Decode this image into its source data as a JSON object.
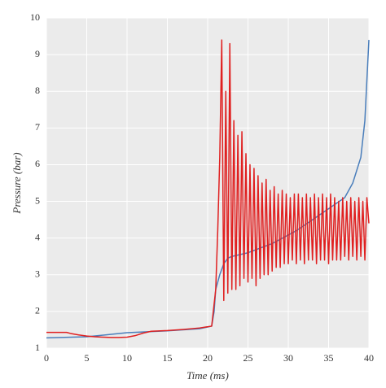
{
  "chart_data": {
    "type": "line",
    "x_label": "Time (ms)",
    "y_label": "Pressure (bar)",
    "xlim": [
      0,
      40
    ],
    "xticks": [
      0,
      5,
      10,
      15,
      20,
      25,
      30,
      35,
      40
    ],
    "ylim": [
      1,
      10
    ],
    "yticks": [
      1,
      2,
      3,
      4,
      5,
      6,
      7,
      8,
      9,
      10
    ],
    "grid": true,
    "series": [
      {
        "color": "#4a7ebb",
        "x": [
          0,
          5,
          10,
          15,
          19,
          20.5,
          20.8,
          21,
          21.5,
          22,
          22.5,
          23,
          25,
          28,
          31,
          33,
          35,
          37,
          38,
          39,
          39.5,
          40
        ],
        "values": [
          1.28,
          1.31,
          1.42,
          1.47,
          1.53,
          1.6,
          2.0,
          2.6,
          3.0,
          3.3,
          3.45,
          3.5,
          3.6,
          3.85,
          4.2,
          4.5,
          4.8,
          5.1,
          5.5,
          6.2,
          7.2,
          9.4
        ]
      },
      {
        "color": "#e02020",
        "x": [
          0,
          2.5,
          3,
          4,
          5,
          6,
          7,
          8,
          9,
          10,
          11,
          12,
          13,
          15,
          17,
          19,
          20.5,
          21,
          21.25,
          21.5,
          21.75,
          22,
          22.25,
          22.5,
          22.75,
          23,
          23.25,
          23.5,
          23.75,
          24,
          24.25,
          24.5,
          24.75,
          25,
          25.25,
          25.5,
          25.75,
          26,
          26.25,
          26.5,
          26.75,
          27,
          27.25,
          27.5,
          27.75,
          28,
          28.25,
          28.5,
          28.75,
          29,
          29.25,
          29.5,
          29.75,
          30,
          30.25,
          30.5,
          30.75,
          31,
          31.25,
          31.5,
          31.75,
          32,
          32.25,
          32.5,
          32.75,
          33,
          33.25,
          33.5,
          33.75,
          34,
          34.25,
          34.5,
          34.75,
          35,
          35.25,
          35.5,
          35.75,
          36,
          36.25,
          36.5,
          36.75,
          37,
          37.25,
          37.5,
          37.75,
          38,
          38.25,
          38.5,
          38.75,
          39,
          39.25,
          39.5,
          39.75,
          40
        ],
        "values": [
          1.43,
          1.43,
          1.4,
          1.36,
          1.33,
          1.31,
          1.3,
          1.29,
          1.29,
          1.3,
          1.34,
          1.41,
          1.46,
          1.48,
          1.51,
          1.55,
          1.6,
          2.6,
          4.2,
          6.2,
          9.4,
          2.3,
          8.0,
          2.5,
          9.3,
          2.6,
          7.2,
          2.6,
          6.8,
          2.7,
          6.9,
          2.9,
          6.3,
          2.8,
          6.0,
          2.9,
          5.9,
          2.7,
          5.7,
          2.9,
          5.5,
          3.0,
          5.6,
          3.0,
          5.3,
          3.1,
          5.4,
          3.2,
          5.2,
          3.2,
          5.3,
          3.3,
          5.2,
          3.3,
          5.1,
          3.4,
          5.2,
          3.3,
          5.2,
          3.4,
          5.1,
          3.3,
          5.2,
          3.4,
          5.1,
          3.4,
          5.2,
          3.3,
          5.1,
          3.4,
          5.2,
          3.4,
          5.1,
          3.3,
          5.2,
          3.4,
          5.1,
          3.4,
          5.0,
          3.4,
          5.1,
          3.5,
          5.0,
          3.4,
          5.1,
          3.5,
          5.0,
          3.4,
          5.1,
          3.5,
          5.0,
          3.4,
          5.1,
          4.4
        ]
      }
    ]
  }
}
